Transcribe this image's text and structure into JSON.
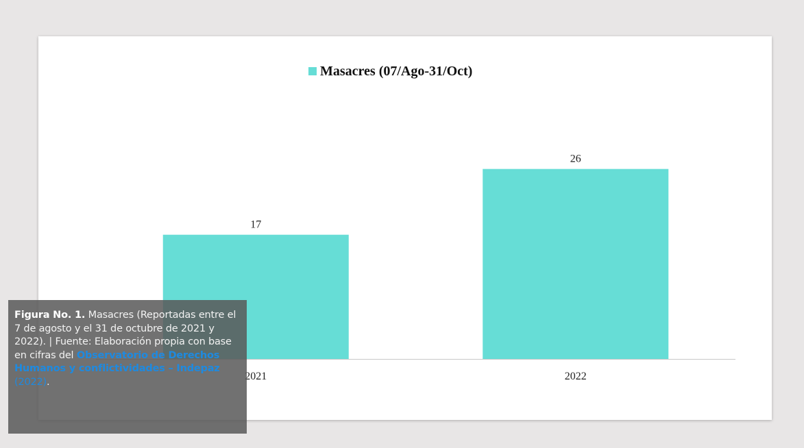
{
  "chart_data": {
    "type": "bar",
    "categories": [
      "2021",
      "2022"
    ],
    "series": [
      {
        "name": "Masacres (07/Ago-31/Oct)",
        "values": [
          17,
          26
        ],
        "color": "#66ddd6"
      }
    ],
    "data_labels": [
      "17",
      "26"
    ],
    "ylim": [
      0,
      30
    ],
    "grid": false,
    "legend_position": "top-center"
  },
  "caption": {
    "label": "Figura No. 1.",
    "text": " Masacres (Reportadas entre el 7 de agosto y el 31 de octubre de 2021 y 2022). | Fuente: Elaboración propia con base en cifras del ",
    "link_bold": "Observatorio de Derechos Humanos y conflictividades – Indepaz",
    "link_plain": " (2022)",
    "end": "."
  }
}
